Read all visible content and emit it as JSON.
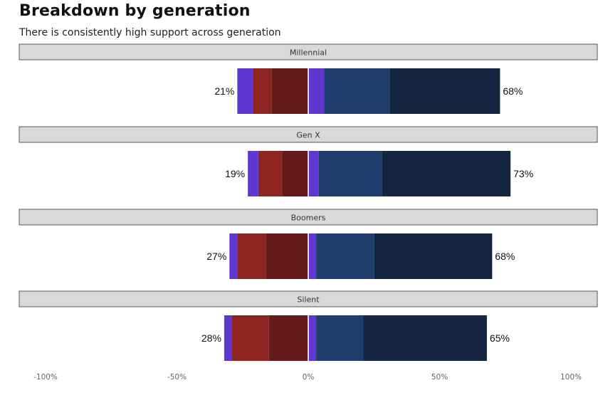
{
  "title": "Breakdown by generation",
  "subtitle": "There is consistently high support across generation",
  "chart_data": {
    "type": "bar",
    "orientation": "horizontal-diverging-stacked",
    "categories": [
      "Millennial",
      "Gen X",
      "Boomers",
      "Silent"
    ],
    "series": [
      {
        "values": [
          -14,
          -10,
          -16,
          -15
        ],
        "color": "#641a1a"
      },
      {
        "values": [
          -7,
          -9,
          -11,
          -14
        ],
        "color": "#8e2420"
      },
      {
        "values": [
          -6,
          -4,
          -3,
          -3
        ],
        "color": "#5f36d0"
      },
      {
        "values": [
          6,
          4,
          3,
          3
        ],
        "color": "#5f36d0"
      },
      {
        "values": [
          25,
          24,
          22,
          18
        ],
        "color": "#1f3e6e"
      },
      {
        "values": [
          42,
          49,
          45,
          47
        ],
        "color": "#13253f"
      }
    ],
    "left_labels": [
      "21%",
      "19%",
      "27%",
      "28%"
    ],
    "right_labels": [
      "68%",
      "73%",
      "68%",
      "65%"
    ],
    "xticks": [
      -100,
      -50,
      0,
      50,
      100
    ],
    "xtick_labels": [
      "-100%",
      "-50%",
      "0%",
      "50%",
      "100%"
    ],
    "xlim": [
      -100,
      100
    ],
    "zero_line": true,
    "grid": false,
    "legend": "none",
    "facet_strip_color": "#d9d9d9"
  }
}
